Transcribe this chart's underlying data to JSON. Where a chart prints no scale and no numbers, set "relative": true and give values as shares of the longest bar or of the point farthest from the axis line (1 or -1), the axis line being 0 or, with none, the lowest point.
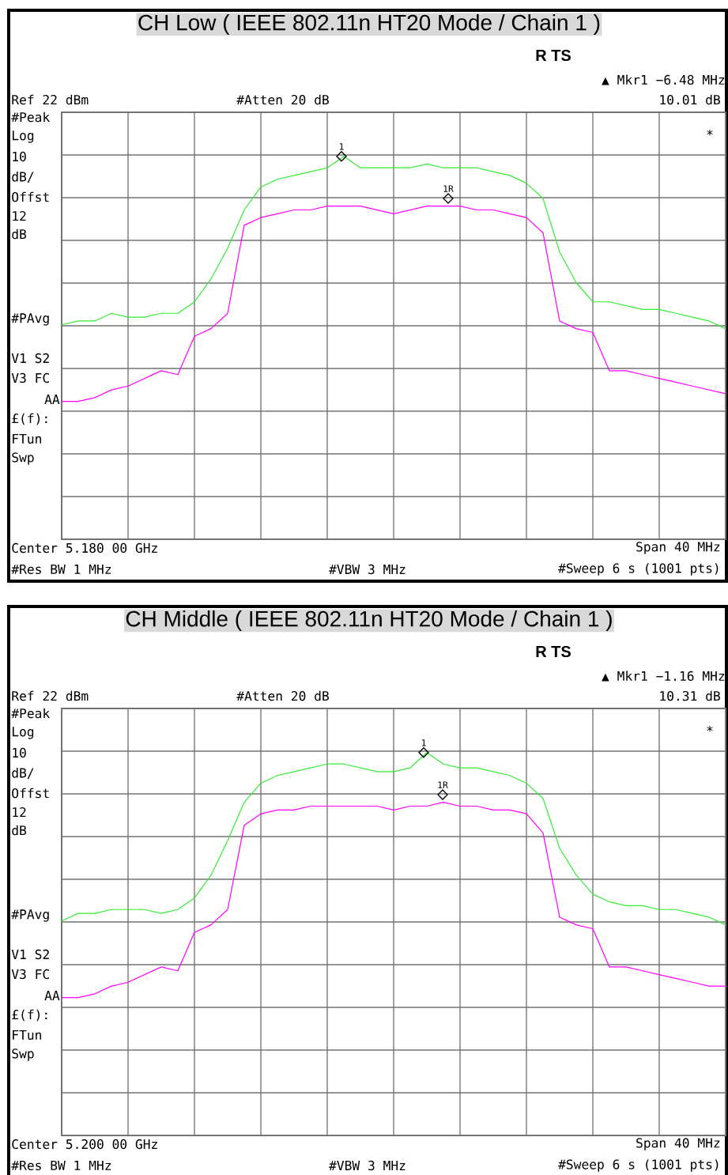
{
  "chart_data": [
    {
      "type": "line",
      "title": "CH Low ( IEEE 802.11n HT20 Mode / Chain 1 )",
      "relative": true,
      "grid": true,
      "annotations": [
        "R TS",
        "▲ Mkr1 −6.48 MHz",
        "Ref 22 dBm",
        "#Atten 20 dB",
        "10.01 dB",
        "#Peak",
        "Log",
        "10",
        "dB/",
        "Offst",
        "12",
        "dB",
        "#PAvg",
        "V1 S2",
        "V3 FC",
        "AA",
        "£(f):",
        "FTun",
        "Swp",
        "*",
        "Center 5.180 00 GHz",
        "Span 40 MHz",
        "#Res BW 1 MHz",
        "#VBW 3 MHz",
        "#Sweep 6 s (1001 pts)",
        {
          "text": "1",
          "y": 1.0
        },
        {
          "text": "1R",
          "y": 0.89
        }
      ],
      "categories": [
        null,
        null,
        null,
        null,
        null,
        null,
        null,
        null,
        null,
        null,
        null,
        null,
        null,
        null,
        null,
        null,
        null,
        null,
        null,
        null,
        null,
        null,
        null,
        null,
        null,
        null,
        null,
        null,
        null,
        null,
        null,
        null,
        null,
        null,
        null,
        null,
        null,
        null,
        null,
        null,
        null
      ],
      "series": [
        {
          "color": "#33ee33",
          "values": [
            0.56,
            0.57,
            0.57,
            0.59,
            0.58,
            0.58,
            0.59,
            0.59,
            0.62,
            0.68,
            0.76,
            0.86,
            0.92,
            0.94,
            0.95,
            0.96,
            0.97,
            1.0,
            0.97,
            0.97,
            0.97,
            0.97,
            0.98,
            0.97,
            0.97,
            0.97,
            0.96,
            0.95,
            0.93,
            0.89,
            0.75,
            0.67,
            0.62,
            0.62,
            0.61,
            0.6,
            0.6,
            0.59,
            0.58,
            0.57,
            0.55
          ]
        },
        {
          "color": "#ff00ff",
          "values": [
            0.36,
            0.36,
            0.37,
            0.39,
            0.4,
            0.42,
            0.44,
            0.43,
            0.53,
            0.55,
            0.59,
            0.82,
            0.84,
            0.85,
            0.86,
            0.86,
            0.87,
            0.87,
            0.87,
            0.86,
            0.85,
            0.86,
            0.87,
            0.87,
            0.87,
            0.86,
            0.86,
            0.85,
            0.84,
            0.8,
            0.57,
            0.55,
            0.54,
            0.44,
            0.44,
            0.43,
            0.42,
            0.41,
            0.4,
            0.39,
            0.38
          ]
        }
      ]
    },
    {
      "type": "line",
      "title": "CH Middle ( IEEE 802.11n HT20 Mode / Chain 1 )",
      "relative": true,
      "grid": true,
      "annotations": [
        "R TS",
        "▲ Mkr1 −1.16 MHz",
        "Ref 22 dBm",
        "#Atten 20 dB",
        "10.31 dB",
        "#Peak",
        "Log",
        "10",
        "dB/",
        "Offst",
        "12",
        "dB",
        "#PAvg",
        "V1 S2",
        "V3 FC",
        "AA",
        "£(f):",
        "FTun",
        "Swp",
        "*",
        "Center 5.200 00 GHz",
        "Span 40 MHz",
        "#Res BW 1 MHz",
        "#VBW 3 MHz",
        "#Sweep 6 s (1001 pts)",
        {
          "text": "1",
          "y": 1.0
        },
        {
          "text": "1R",
          "y": 0.89
        }
      ],
      "categories": [
        null,
        null,
        null,
        null,
        null,
        null,
        null,
        null,
        null,
        null,
        null,
        null,
        null,
        null,
        null,
        null,
        null,
        null,
        null,
        null,
        null,
        null,
        null,
        null,
        null,
        null,
        null,
        null,
        null,
        null,
        null,
        null,
        null,
        null,
        null,
        null,
        null,
        null,
        null,
        null,
        null
      ],
      "series": [
        {
          "color": "#33ee33",
          "values": [
            0.56,
            0.58,
            0.58,
            0.59,
            0.59,
            0.59,
            0.58,
            0.59,
            0.62,
            0.68,
            0.77,
            0.87,
            0.92,
            0.94,
            0.95,
            0.96,
            0.97,
            0.97,
            0.96,
            0.95,
            0.95,
            0.96,
            1.0,
            0.97,
            0.96,
            0.96,
            0.95,
            0.94,
            0.92,
            0.88,
            0.75,
            0.68,
            0.63,
            0.61,
            0.6,
            0.6,
            0.59,
            0.59,
            0.58,
            0.57,
            0.55
          ]
        },
        {
          "color": "#ff00ff",
          "values": [
            0.36,
            0.36,
            0.37,
            0.39,
            0.4,
            0.42,
            0.44,
            0.43,
            0.53,
            0.55,
            0.59,
            0.81,
            0.84,
            0.85,
            0.85,
            0.86,
            0.86,
            0.86,
            0.86,
            0.86,
            0.85,
            0.86,
            0.86,
            0.87,
            0.86,
            0.86,
            0.85,
            0.85,
            0.84,
            0.79,
            0.57,
            0.55,
            0.54,
            0.44,
            0.44,
            0.43,
            0.42,
            0.41,
            0.4,
            0.39,
            0.39
          ]
        }
      ]
    }
  ]
}
